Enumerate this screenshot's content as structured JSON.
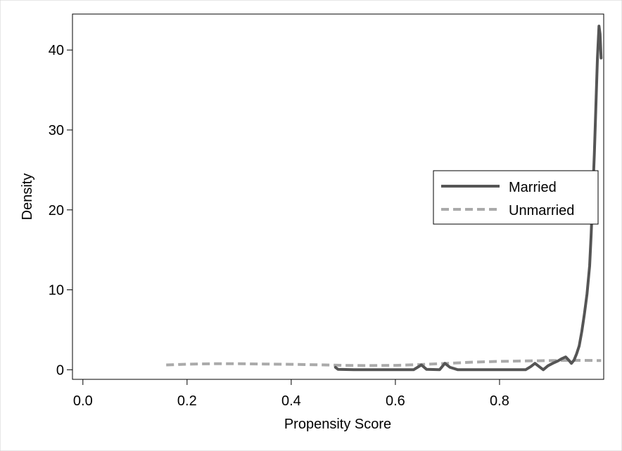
{
  "chart_data": {
    "type": "line",
    "title": "",
    "xlabel": "Propensity Score",
    "ylabel": "Density",
    "xlim": [
      -0.02,
      1.0
    ],
    "ylim": [
      -1.2,
      44.5
    ],
    "x_ticks": [
      0.0,
      0.2,
      0.4,
      0.6,
      0.8
    ],
    "x_tick_labels": [
      "0.0",
      "0.2",
      "0.4",
      "0.6",
      "0.8"
    ],
    "y_ticks": [
      0,
      10,
      20,
      30,
      40
    ],
    "y_tick_labels": [
      "0",
      "10",
      "20",
      "30",
      "40"
    ],
    "grid": false,
    "legend_position": "right",
    "series": [
      {
        "name": "Married",
        "style": "solid",
        "color": "#555555",
        "points": [
          [
            0.485,
            0.3
          ],
          [
            0.49,
            0.05
          ],
          [
            0.52,
            0.0
          ],
          [
            0.55,
            0.0
          ],
          [
            0.58,
            0.0
          ],
          [
            0.635,
            0.0
          ],
          [
            0.65,
            0.6
          ],
          [
            0.66,
            0.05
          ],
          [
            0.685,
            0.0
          ],
          [
            0.695,
            0.8
          ],
          [
            0.705,
            0.3
          ],
          [
            0.72,
            0.0
          ],
          [
            0.75,
            0.0
          ],
          [
            0.8,
            0.0
          ],
          [
            0.85,
            0.0
          ],
          [
            0.86,
            0.4
          ],
          [
            0.868,
            0.8
          ],
          [
            0.876,
            0.4
          ],
          [
            0.884,
            0.0
          ],
          [
            0.893,
            0.5
          ],
          [
            0.902,
            0.8
          ],
          [
            0.912,
            1.1
          ],
          [
            0.92,
            1.4
          ],
          [
            0.927,
            1.6
          ],
          [
            0.933,
            1.2
          ],
          [
            0.938,
            0.8
          ],
          [
            0.943,
            1.2
          ],
          [
            0.948,
            2.0
          ],
          [
            0.953,
            3.0
          ],
          [
            0.958,
            4.8
          ],
          [
            0.963,
            7.0
          ],
          [
            0.968,
            9.5
          ],
          [
            0.973,
            13.0
          ],
          [
            0.976,
            17.0
          ],
          [
            0.979,
            22.0
          ],
          [
            0.982,
            27.0
          ],
          [
            0.985,
            33.0
          ],
          [
            0.988,
            39.0
          ],
          [
            0.991,
            43.0
          ],
          [
            0.993,
            42.0
          ],
          [
            0.995,
            39.0
          ]
        ]
      },
      {
        "name": "Unmarried",
        "style": "dashed",
        "color": "#aaaaaa",
        "points": [
          [
            0.16,
            0.6
          ],
          [
            0.2,
            0.7
          ],
          [
            0.25,
            0.75
          ],
          [
            0.3,
            0.75
          ],
          [
            0.35,
            0.72
          ],
          [
            0.4,
            0.68
          ],
          [
            0.45,
            0.62
          ],
          [
            0.5,
            0.55
          ],
          [
            0.55,
            0.52
          ],
          [
            0.6,
            0.55
          ],
          [
            0.65,
            0.65
          ],
          [
            0.7,
            0.8
          ],
          [
            0.75,
            0.95
          ],
          [
            0.8,
            1.05
          ],
          [
            0.85,
            1.1
          ],
          [
            0.9,
            1.15
          ],
          [
            0.95,
            1.18
          ],
          [
            0.995,
            1.15
          ]
        ]
      }
    ]
  }
}
